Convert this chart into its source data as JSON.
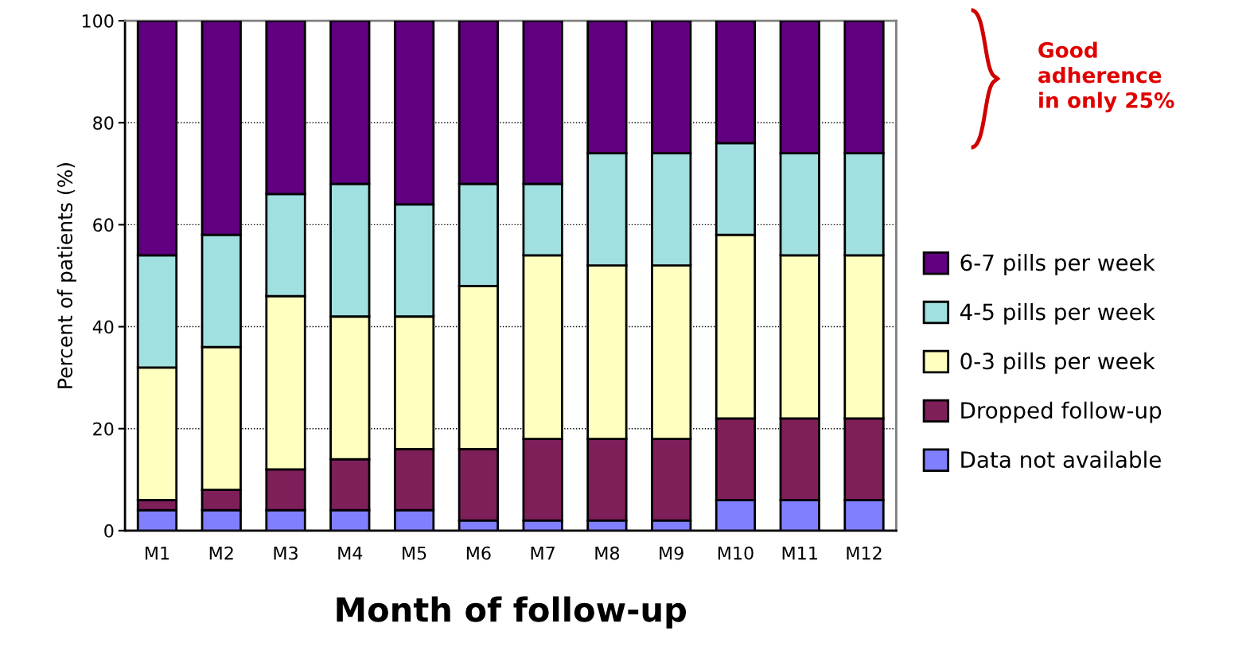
{
  "chart_data": {
    "type": "bar",
    "stacked": true,
    "xlabel": "Month of follow-up",
    "ylabel": "Percent of patients (%)",
    "categories": [
      "M1",
      "M2",
      "M3",
      "M4",
      "M5",
      "M6",
      "M7",
      "M8",
      "M9",
      "M10",
      "M11",
      "M12"
    ],
    "series": [
      {
        "name": "Data not available",
        "color": "#8080ff",
        "values": [
          4,
          4,
          4,
          4,
          4,
          2,
          2,
          2,
          2,
          6,
          6,
          6
        ]
      },
      {
        "name": "Dropped follow-up",
        "color": "#7f1f5a",
        "values": [
          2,
          4,
          8,
          10,
          12,
          14,
          16,
          16,
          16,
          16,
          16,
          16
        ]
      },
      {
        "name": "0-3 pills per week",
        "color": "#ffffc0",
        "values": [
          26,
          28,
          34,
          28,
          26,
          32,
          36,
          34,
          34,
          36,
          32,
          32
        ]
      },
      {
        "name": "4-5 pills per week",
        "color": "#a0e0e0",
        "values": [
          22,
          22,
          20,
          26,
          22,
          20,
          14,
          22,
          22,
          18,
          20,
          20
        ]
      },
      {
        "name": "6-7 pills per week",
        "color": "#600080",
        "values": [
          46,
          42,
          34,
          32,
          36,
          32,
          32,
          26,
          26,
          24,
          26,
          26
        ]
      }
    ],
    "ylim": [
      0,
      100
    ],
    "yticks": [
      0,
      20,
      40,
      60,
      80,
      100
    ],
    "grid": "y",
    "legend": "right",
    "annotations": [
      "Good\nadherence\nin only 25%"
    ]
  }
}
